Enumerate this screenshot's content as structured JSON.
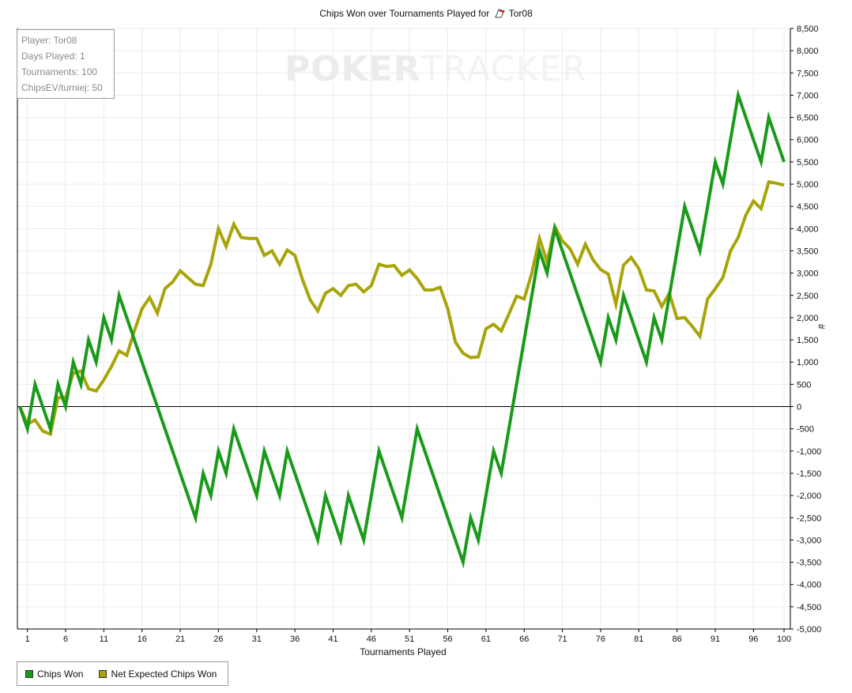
{
  "title_prefix": "Chips Won over Tournaments Played for",
  "player_name": "Tor08",
  "watermark": {
    "part1": "POKER",
    "part2": "TRACKER"
  },
  "info": [
    "Player: Tor08",
    "Days Played: 1",
    "Tournaments: 100",
    "ChipsEV/turniej: 50"
  ],
  "colors": {
    "chips_won": "#1a9a1a",
    "expected": "#a8a40a",
    "grid": "#ebebeb",
    "axis": "#000000"
  },
  "chart_data": {
    "type": "line",
    "title": "Chips Won over Tournaments Played for Tor08",
    "xlabel": "Tournaments Played",
    "ylabel": "#",
    "xlim": [
      0,
      100
    ],
    "ylim": [
      -5000,
      8500
    ],
    "x_ticks": [
      1,
      6,
      11,
      16,
      21,
      26,
      31,
      36,
      41,
      46,
      51,
      56,
      61,
      66,
      71,
      76,
      81,
      86,
      91,
      96,
      100
    ],
    "y_ticks": [
      -5000,
      -4500,
      -4000,
      -3500,
      -3000,
      -2500,
      -2000,
      -1500,
      -1000,
      -500,
      0,
      500,
      1000,
      1500,
      2000,
      2500,
      3000,
      3500,
      4000,
      4500,
      5000,
      5500,
      6000,
      6500,
      7000,
      7500,
      8000,
      8500
    ],
    "y_tick_labels": [
      "-5,000",
      "-4,500",
      "-4,000",
      "-3,500",
      "-3,000",
      "-2,500",
      "-2,000",
      "-1,500",
      "-1,000",
      "-500",
      "0",
      "500",
      "1,000",
      "1,500",
      "2,000",
      "2,500",
      "3,000",
      "3,500",
      "4,000",
      "4,500",
      "5,000",
      "5,500",
      "6,000",
      "6,500",
      "7,000",
      "7,500",
      "8,000",
      "8,500"
    ],
    "grid": true,
    "legend_position": "bottom-left",
    "series": [
      {
        "name": "Chips Won",
        "points": [
          [
            0,
            0
          ],
          [
            1,
            -500
          ],
          [
            2,
            500
          ],
          [
            3,
            0
          ],
          [
            4,
            -500
          ],
          [
            5,
            500
          ],
          [
            6,
            0
          ],
          [
            7,
            1000
          ],
          [
            8,
            500
          ],
          [
            9,
            1500
          ],
          [
            10,
            1000
          ],
          [
            11,
            2000
          ],
          [
            12,
            1500
          ],
          [
            13,
            2500
          ],
          [
            23,
            -2500
          ],
          [
            24,
            -1500
          ],
          [
            25,
            -2000
          ],
          [
            26,
            -1000
          ],
          [
            27,
            -1500
          ],
          [
            28,
            -500
          ],
          [
            31,
            -2000
          ],
          [
            32,
            -1000
          ],
          [
            34,
            -2000
          ],
          [
            35,
            -1000
          ],
          [
            39,
            -3000
          ],
          [
            40,
            -2000
          ],
          [
            42,
            -3000
          ],
          [
            43,
            -2000
          ],
          [
            45,
            -3000
          ],
          [
            47,
            -1000
          ],
          [
            50,
            -2500
          ],
          [
            52,
            -500
          ],
          [
            58,
            -3500
          ],
          [
            59,
            -2500
          ],
          [
            60,
            -3000
          ],
          [
            62,
            -1000
          ],
          [
            63,
            -1500
          ],
          [
            68,
            3500
          ],
          [
            69,
            3000
          ],
          [
            70,
            4000
          ],
          [
            76,
            1000
          ],
          [
            77,
            2000
          ],
          [
            78,
            1500
          ],
          [
            79,
            2500
          ],
          [
            82,
            1000
          ],
          [
            83,
            2000
          ],
          [
            84,
            1500
          ],
          [
            87,
            4500
          ],
          [
            89,
            3500
          ],
          [
            91,
            5500
          ],
          [
            92,
            5000
          ],
          [
            94,
            7000
          ],
          [
            97,
            5500
          ],
          [
            98,
            6500
          ],
          [
            100,
            5500
          ]
        ]
      },
      {
        "name": "Net Expected Chips Won",
        "points": [
          [
            0,
            0
          ],
          [
            1,
            -400
          ],
          [
            2,
            -300
          ],
          [
            3,
            -550
          ],
          [
            4,
            -620
          ],
          [
            5,
            200
          ],
          [
            6,
            200
          ],
          [
            7,
            750
          ],
          [
            8,
            800
          ],
          [
            9,
            400
          ],
          [
            10,
            350
          ],
          [
            11,
            600
          ],
          [
            12,
            900
          ],
          [
            13,
            1250
          ],
          [
            14,
            1150
          ],
          [
            15,
            1700
          ],
          [
            16,
            2200
          ],
          [
            17,
            2450
          ],
          [
            18,
            2100
          ],
          [
            19,
            2650
          ],
          [
            20,
            2800
          ],
          [
            21,
            3050
          ],
          [
            22,
            2900
          ],
          [
            23,
            2750
          ],
          [
            24,
            2720
          ],
          [
            25,
            3200
          ],
          [
            26,
            4000
          ],
          [
            27,
            3600
          ],
          [
            28,
            4100
          ],
          [
            29,
            3800
          ],
          [
            30,
            3780
          ],
          [
            31,
            3780
          ],
          [
            32,
            3400
          ],
          [
            33,
            3500
          ],
          [
            34,
            3200
          ],
          [
            35,
            3520
          ],
          [
            36,
            3400
          ],
          [
            37,
            2850
          ],
          [
            38,
            2400
          ],
          [
            39,
            2150
          ],
          [
            40,
            2550
          ],
          [
            41,
            2650
          ],
          [
            42,
            2500
          ],
          [
            43,
            2720
          ],
          [
            44,
            2750
          ],
          [
            45,
            2580
          ],
          [
            46,
            2720
          ],
          [
            47,
            3200
          ],
          [
            48,
            3150
          ],
          [
            49,
            3170
          ],
          [
            50,
            2950
          ],
          [
            51,
            3070
          ],
          [
            52,
            2880
          ],
          [
            53,
            2620
          ],
          [
            54,
            2620
          ],
          [
            55,
            2680
          ],
          [
            56,
            2200
          ],
          [
            57,
            1450
          ],
          [
            58,
            1200
          ],
          [
            59,
            1100
          ],
          [
            60,
            1120
          ],
          [
            61,
            1750
          ],
          [
            62,
            1850
          ],
          [
            63,
            1700
          ],
          [
            64,
            2080
          ],
          [
            65,
            2480
          ],
          [
            66,
            2420
          ],
          [
            67,
            3000
          ],
          [
            68,
            3780
          ],
          [
            69,
            3250
          ],
          [
            70,
            4050
          ],
          [
            71,
            3720
          ],
          [
            72,
            3550
          ],
          [
            73,
            3200
          ],
          [
            74,
            3650
          ],
          [
            75,
            3300
          ],
          [
            76,
            3080
          ],
          [
            77,
            2980
          ],
          [
            78,
            2300
          ],
          [
            79,
            3180
          ],
          [
            80,
            3350
          ],
          [
            81,
            3100
          ],
          [
            82,
            2620
          ],
          [
            83,
            2600
          ],
          [
            84,
            2250
          ],
          [
            85,
            2550
          ],
          [
            86,
            1980
          ],
          [
            87,
            2000
          ],
          [
            88,
            1800
          ],
          [
            89,
            1580
          ],
          [
            90,
            2420
          ],
          [
            91,
            2650
          ],
          [
            92,
            2900
          ],
          [
            93,
            3500
          ],
          [
            94,
            3800
          ],
          [
            95,
            4300
          ],
          [
            96,
            4620
          ],
          [
            97,
            4450
          ],
          [
            98,
            5050
          ],
          [
            99,
            5020
          ],
          [
            100,
            4980
          ]
        ]
      }
    ]
  }
}
